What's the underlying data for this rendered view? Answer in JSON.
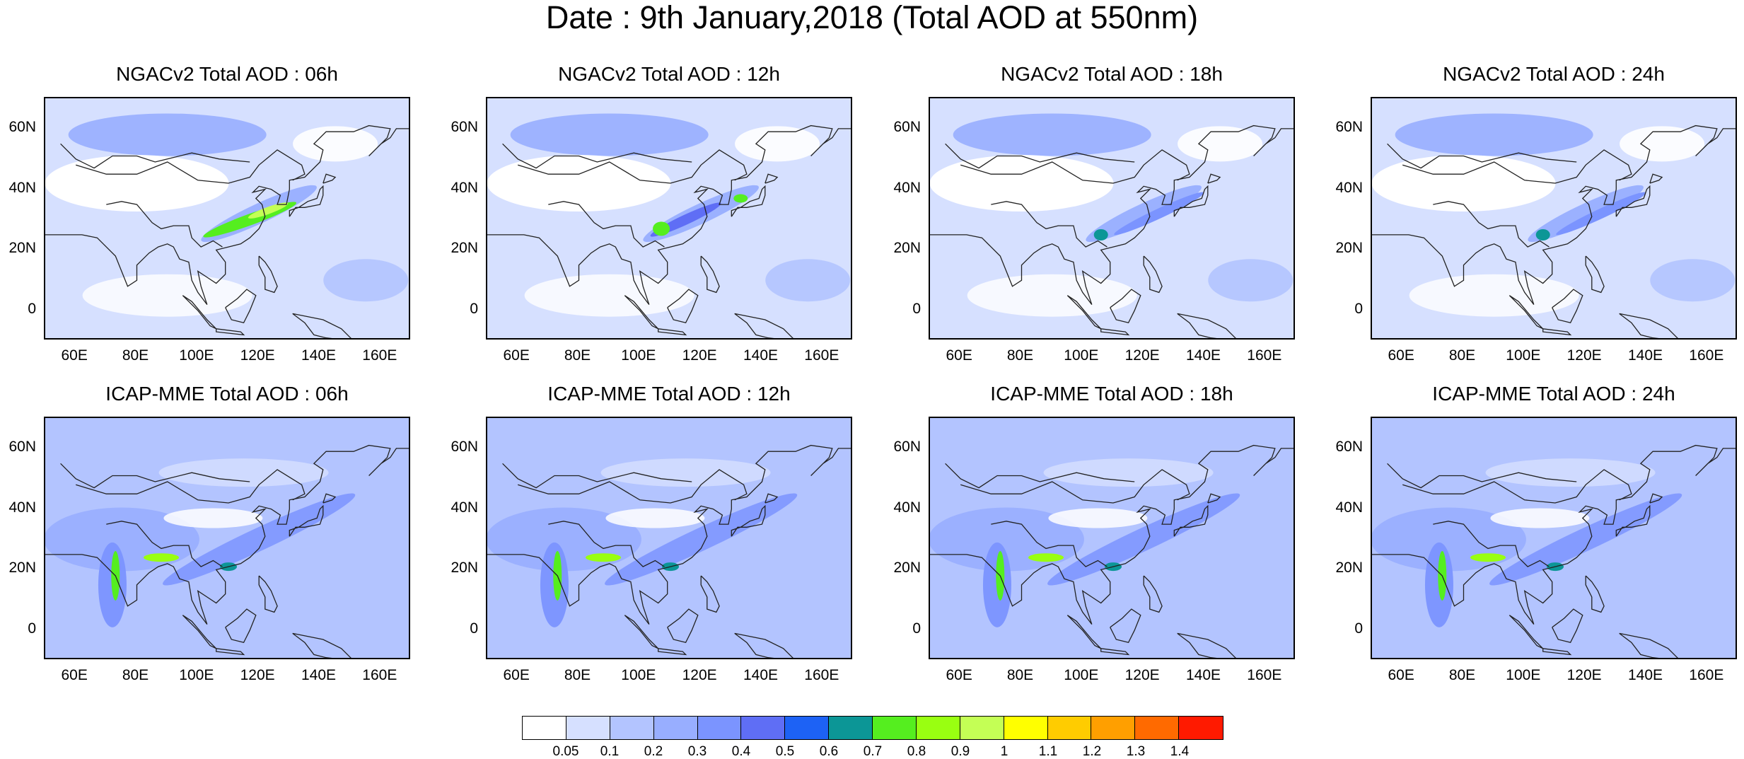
{
  "title": "Date : 9th January,2018 (Total AOD at 550nm)",
  "lat_ticks": [
    "60N",
    "40N",
    "20N",
    "0"
  ],
  "lon_ticks": [
    "60E",
    "80E",
    "100E",
    "120E",
    "140E",
    "160E"
  ],
  "panels": [
    {
      "title": "NGACv2 Total AOD : 06h"
    },
    {
      "title": "NGACv2 Total AOD : 12h"
    },
    {
      "title": "NGACv2 Total AOD : 18h"
    },
    {
      "title": "NGACv2 Total AOD : 24h"
    },
    {
      "title": "ICAP-MME Total AOD : 06h"
    },
    {
      "title": "ICAP-MME Total AOD : 12h"
    },
    {
      "title": "ICAP-MME Total AOD : 18h"
    },
    {
      "title": "ICAP-MME Total AOD : 24h"
    }
  ],
  "colorbar": {
    "labels": [
      "0.05",
      "0.1",
      "0.2",
      "0.3",
      "0.4",
      "0.5",
      "0.6",
      "0.7",
      "0.8",
      "0.9",
      "1",
      "1.1",
      "1.2",
      "1.3",
      "1.4"
    ],
    "colors": [
      "#ffffff",
      "#d6e0ff",
      "#b3c4ff",
      "#98aeff",
      "#7b94ff",
      "#5f6ef5",
      "#1d62f5",
      "#0c9696",
      "#55ee1f",
      "#99ff11",
      "#c4ff55",
      "#ffff00",
      "#ffcc00",
      "#ff9f00",
      "#ff6a00",
      "#ff1a00"
    ]
  }
}
